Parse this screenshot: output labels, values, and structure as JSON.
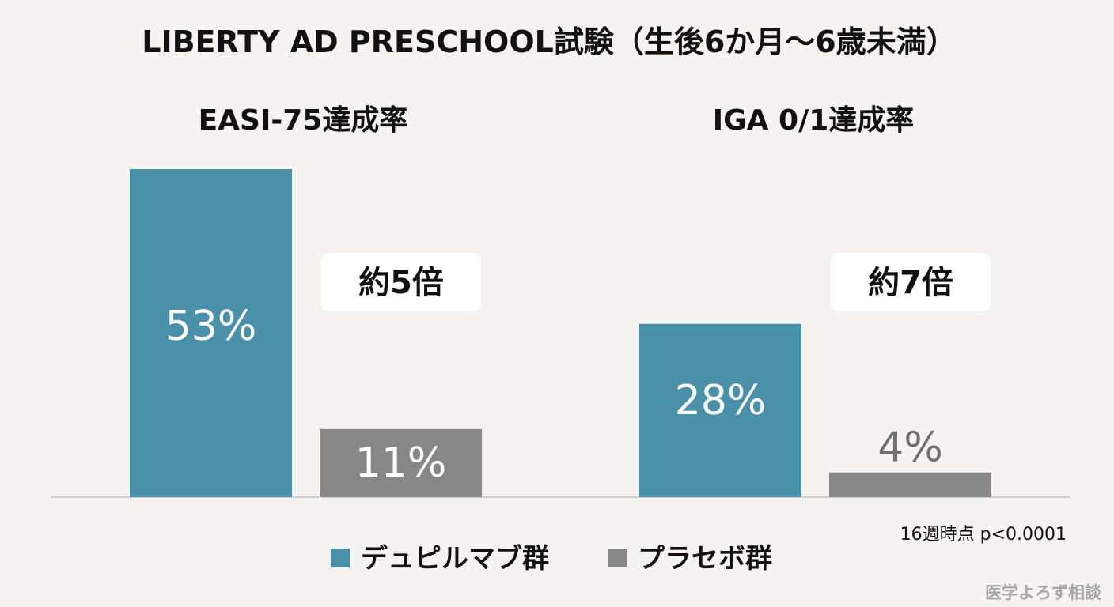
{
  "chart_data": {
    "type": "bar",
    "title": "LIBERTY AD PRESCHOOL試験（生後6か月～6歳未満）",
    "panels": [
      {
        "subtitle": "EASI-75達成率",
        "categories": [
          "デュピルマブ群",
          "プラセボ群"
        ],
        "values": [
          53,
          11
        ],
        "value_labels": [
          "53%",
          "11%"
        ],
        "ratio_label": "約5倍"
      },
      {
        "subtitle": "IGA 0/1達成率",
        "categories": [
          "デュピルマブ群",
          "プラセボ群"
        ],
        "values": [
          28,
          4
        ],
        "value_labels": [
          "28%",
          "4%"
        ],
        "ratio_label": "約7倍"
      }
    ],
    "series": [
      {
        "name": "デュピルマブ群",
        "color": "#4a90a8"
      },
      {
        "name": "プラセボ群",
        "color": "#878787"
      }
    ],
    "ylim": [
      0,
      53
    ],
    "grid": false,
    "legend_position": "bottom-center",
    "note": "16週時点 p<0.0001"
  },
  "watermark": "医学よろず相談"
}
